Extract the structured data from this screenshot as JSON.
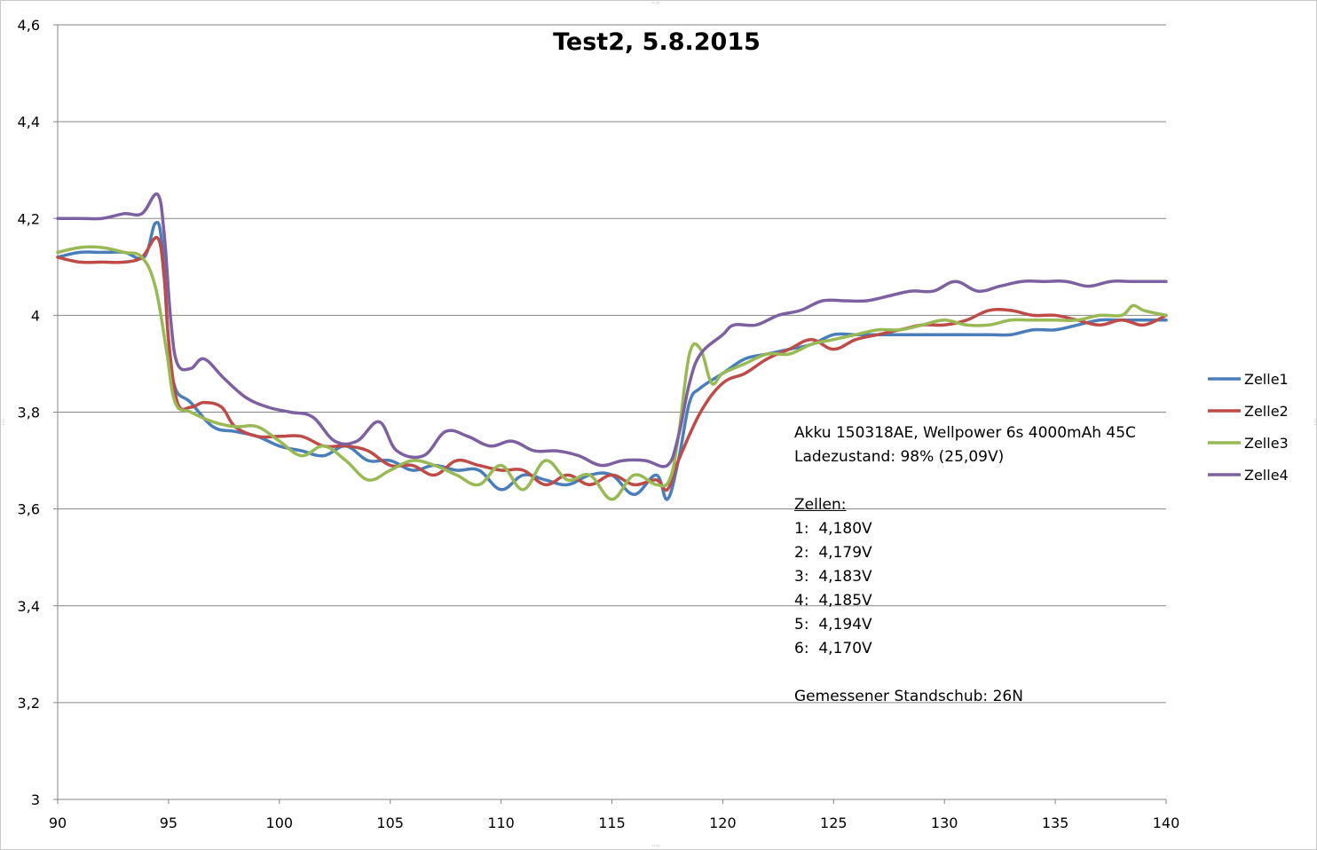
{
  "chart_data": {
    "type": "line",
    "title": "Test2, 5.8.2015",
    "xlabel": "",
    "ylabel": "",
    "xlim": [
      90,
      140
    ],
    "ylim": [
      3,
      4.6
    ],
    "x_ticks": [
      "90",
      "95",
      "100",
      "105",
      "110",
      "115",
      "120",
      "125",
      "130",
      "135",
      "140"
    ],
    "y_ticks": [
      "3",
      "3,2",
      "3,4",
      "3,6",
      "3,8",
      "4",
      "4,2",
      "4,4",
      "4,6"
    ],
    "grid": "horizontal",
    "legend_position": "right",
    "series": [
      {
        "name": "Zelle1",
        "color": "#4a7ebb",
        "points": [
          [
            90,
            4.12
          ],
          [
            91,
            4.13
          ],
          [
            92,
            4.13
          ],
          [
            93,
            4.13
          ],
          [
            93.9,
            4.12
          ],
          [
            94.4,
            4.19
          ],
          [
            94.7,
            4.15
          ],
          [
            95,
            3.95
          ],
          [
            95.3,
            3.85
          ],
          [
            96,
            3.82
          ],
          [
            97,
            3.77
          ],
          [
            98,
            3.76
          ],
          [
            99,
            3.75
          ],
          [
            100,
            3.73
          ],
          [
            101,
            3.72
          ],
          [
            102,
            3.71
          ],
          [
            103,
            3.73
          ],
          [
            104,
            3.7
          ],
          [
            105,
            3.7
          ],
          [
            106,
            3.68
          ],
          [
            107,
            3.69
          ],
          [
            108,
            3.68
          ],
          [
            109,
            3.68
          ],
          [
            110,
            3.64
          ],
          [
            111,
            3.67
          ],
          [
            112,
            3.66
          ],
          [
            113,
            3.65
          ],
          [
            114,
            3.67
          ],
          [
            115,
            3.67
          ],
          [
            116,
            3.63
          ],
          [
            117,
            3.67
          ],
          [
            117.5,
            3.62
          ],
          [
            118,
            3.7
          ],
          [
            118.5,
            3.82
          ],
          [
            119,
            3.85
          ],
          [
            120,
            3.88
          ],
          [
            121,
            3.91
          ],
          [
            122,
            3.92
          ],
          [
            123,
            3.93
          ],
          [
            124,
            3.94
          ],
          [
            125,
            3.96
          ],
          [
            126,
            3.96
          ],
          [
            127,
            3.96
          ],
          [
            128,
            3.96
          ],
          [
            129,
            3.96
          ],
          [
            130,
            3.96
          ],
          [
            131,
            3.96
          ],
          [
            132,
            3.96
          ],
          [
            133,
            3.96
          ],
          [
            134,
            3.97
          ],
          [
            135,
            3.97
          ],
          [
            136,
            3.98
          ],
          [
            137,
            3.99
          ],
          [
            138,
            3.99
          ],
          [
            139,
            3.99
          ],
          [
            140,
            3.99
          ]
        ]
      },
      {
        "name": "Zelle2",
        "color": "#be4b48",
        "points": [
          [
            90,
            4.12
          ],
          [
            91,
            4.11
          ],
          [
            92,
            4.11
          ],
          [
            93,
            4.11
          ],
          [
            93.8,
            4.12
          ],
          [
            94.5,
            4.16
          ],
          [
            94.8,
            4.08
          ],
          [
            95,
            3.95
          ],
          [
            95.4,
            3.82
          ],
          [
            96,
            3.81
          ],
          [
            96.6,
            3.82
          ],
          [
            97.4,
            3.81
          ],
          [
            98,
            3.77
          ],
          [
            99,
            3.75
          ],
          [
            100,
            3.75
          ],
          [
            101,
            3.75
          ],
          [
            102,
            3.73
          ],
          [
            103,
            3.73
          ],
          [
            104,
            3.72
          ],
          [
            105,
            3.69
          ],
          [
            106,
            3.69
          ],
          [
            107,
            3.67
          ],
          [
            108,
            3.7
          ],
          [
            109,
            3.69
          ],
          [
            110,
            3.68
          ],
          [
            111,
            3.68
          ],
          [
            112,
            3.65
          ],
          [
            113,
            3.67
          ],
          [
            114,
            3.65
          ],
          [
            115,
            3.67
          ],
          [
            116,
            3.65
          ],
          [
            117,
            3.66
          ],
          [
            117.5,
            3.64
          ],
          [
            118,
            3.7
          ],
          [
            119,
            3.8
          ],
          [
            120,
            3.86
          ],
          [
            121,
            3.88
          ],
          [
            122,
            3.91
          ],
          [
            123,
            3.93
          ],
          [
            124,
            3.95
          ],
          [
            125,
            3.93
          ],
          [
            126,
            3.95
          ],
          [
            127,
            3.96
          ],
          [
            128,
            3.97
          ],
          [
            129,
            3.98
          ],
          [
            130,
            3.98
          ],
          [
            131,
            3.99
          ],
          [
            132,
            4.01
          ],
          [
            133,
            4.01
          ],
          [
            134,
            4.0
          ],
          [
            135,
            4.0
          ],
          [
            136,
            3.99
          ],
          [
            137,
            3.98
          ],
          [
            138,
            3.99
          ],
          [
            139,
            3.98
          ],
          [
            140,
            4.0
          ]
        ]
      },
      {
        "name": "Zelle3",
        "color": "#98b954",
        "points": [
          [
            90,
            4.13
          ],
          [
            91,
            4.14
          ],
          [
            92,
            4.14
          ],
          [
            93,
            4.13
          ],
          [
            93.8,
            4.12
          ],
          [
            94.4,
            4.06
          ],
          [
            94.9,
            3.93
          ],
          [
            95.3,
            3.82
          ],
          [
            96,
            3.8
          ],
          [
            97,
            3.78
          ],
          [
            98,
            3.77
          ],
          [
            99,
            3.77
          ],
          [
            100,
            3.74
          ],
          [
            101,
            3.71
          ],
          [
            102,
            3.73
          ],
          [
            103,
            3.7
          ],
          [
            104,
            3.66
          ],
          [
            105,
            3.68
          ],
          [
            106,
            3.7
          ],
          [
            107,
            3.69
          ],
          [
            108,
            3.67
          ],
          [
            109,
            3.65
          ],
          [
            110,
            3.69
          ],
          [
            111,
            3.64
          ],
          [
            112,
            3.7
          ],
          [
            113,
            3.66
          ],
          [
            114,
            3.67
          ],
          [
            115,
            3.62
          ],
          [
            116,
            3.67
          ],
          [
            117,
            3.65
          ],
          [
            117.6,
            3.66
          ],
          [
            118,
            3.75
          ],
          [
            118.5,
            3.92
          ],
          [
            119,
            3.93
          ],
          [
            119.5,
            3.86
          ],
          [
            120,
            3.88
          ],
          [
            121,
            3.9
          ],
          [
            122,
            3.92
          ],
          [
            123,
            3.92
          ],
          [
            124,
            3.94
          ],
          [
            125,
            3.95
          ],
          [
            126,
            3.96
          ],
          [
            127,
            3.97
          ],
          [
            128,
            3.97
          ],
          [
            129,
            3.98
          ],
          [
            130,
            3.99
          ],
          [
            131,
            3.98
          ],
          [
            132,
            3.98
          ],
          [
            133,
            3.99
          ],
          [
            134,
            3.99
          ],
          [
            135,
            3.99
          ],
          [
            136,
            3.99
          ],
          [
            137,
            4.0
          ],
          [
            138,
            4.0
          ],
          [
            138.5,
            4.02
          ],
          [
            139,
            4.01
          ],
          [
            140,
            4.0
          ]
        ]
      },
      {
        "name": "Zelle4",
        "color": "#7d60a0",
        "points": [
          [
            90,
            4.2
          ],
          [
            91,
            4.2
          ],
          [
            92,
            4.2
          ],
          [
            93,
            4.21
          ],
          [
            93.8,
            4.21
          ],
          [
            94.5,
            4.25
          ],
          [
            94.8,
            4.17
          ],
          [
            95.1,
            3.99
          ],
          [
            95.4,
            3.9
          ],
          [
            96,
            3.89
          ],
          [
            96.6,
            3.91
          ],
          [
            97.5,
            3.87
          ],
          [
            98.5,
            3.83
          ],
          [
            99.5,
            3.81
          ],
          [
            100.5,
            3.8
          ],
          [
            101.5,
            3.79
          ],
          [
            102.5,
            3.74
          ],
          [
            103.5,
            3.74
          ],
          [
            104.5,
            3.78
          ],
          [
            105.3,
            3.72
          ],
          [
            106.5,
            3.71
          ],
          [
            107.5,
            3.76
          ],
          [
            108.5,
            3.75
          ],
          [
            109.5,
            3.73
          ],
          [
            110.5,
            3.74
          ],
          [
            111.5,
            3.72
          ],
          [
            112.5,
            3.72
          ],
          [
            113.5,
            3.71
          ],
          [
            114.5,
            3.69
          ],
          [
            115.5,
            3.7
          ],
          [
            116.5,
            3.7
          ],
          [
            117.5,
            3.69
          ],
          [
            118,
            3.75
          ],
          [
            118.5,
            3.86
          ],
          [
            119,
            3.92
          ],
          [
            120,
            3.96
          ],
          [
            120.5,
            3.98
          ],
          [
            121.5,
            3.98
          ],
          [
            122.5,
            4.0
          ],
          [
            123.5,
            4.01
          ],
          [
            124.5,
            4.03
          ],
          [
            125.5,
            4.03
          ],
          [
            126.5,
            4.03
          ],
          [
            127.5,
            4.04
          ],
          [
            128.5,
            4.05
          ],
          [
            129.5,
            4.05
          ],
          [
            130.5,
            4.07
          ],
          [
            131.5,
            4.05
          ],
          [
            132.5,
            4.06
          ],
          [
            133.5,
            4.07
          ],
          [
            134.5,
            4.07
          ],
          [
            135.5,
            4.07
          ],
          [
            136.5,
            4.06
          ],
          [
            137.5,
            4.07
          ],
          [
            138.5,
            4.07
          ],
          [
            140,
            4.07
          ]
        ]
      }
    ],
    "annotation": {
      "lines": [
        "Akku 150318AE, Wellpower 6s 4000mAh 45C",
        "Ladezustand: 98% (25,09V)",
        "",
        "Zellen:",
        "1:  4,180V",
        "2:  4,179V",
        "3:  4,183V",
        "4:  4,185V",
        "5:  4,194V",
        "6:  4,170V",
        "",
        "Gemessener Standschub: 26N"
      ]
    }
  }
}
